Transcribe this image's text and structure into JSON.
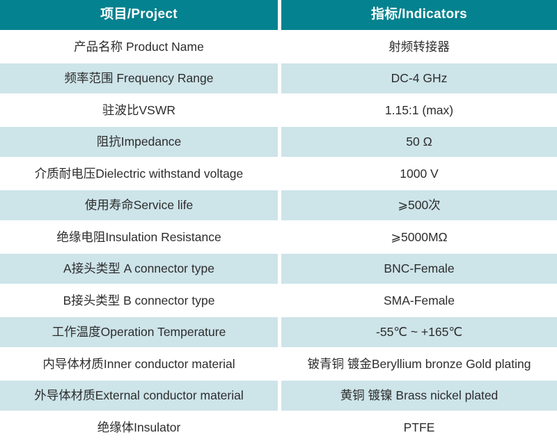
{
  "table": {
    "colors": {
      "header_background": "#05828F",
      "header_text": "#FFFFFF",
      "stripe_background": "#CDE4E9",
      "body_text": "#2D2D2D"
    },
    "header": {
      "project": "项目/Project",
      "indicators": "指标/Indicators"
    },
    "rows": [
      {
        "project": "产品名称 Product Name",
        "indicator": "射频转接器"
      },
      {
        "project": "频率范围 Frequency Range",
        "indicator": "DC-4 GHz"
      },
      {
        "project": "驻波比VSWR",
        "indicator": "1.15:1 (max)"
      },
      {
        "project": "阻抗Impedance",
        "indicator": "50 Ω"
      },
      {
        "project": "介质耐电压Dielectric withstand voltage",
        "indicator": "1000 V"
      },
      {
        "project": "使用寿命Service life",
        "indicator": "⩾500次"
      },
      {
        "project": "绝缘电阻Insulation Resistance",
        "indicator": "⩾5000MΩ"
      },
      {
        "project": "A接头类型 A connector type",
        "indicator": "BNC-Female"
      },
      {
        "project": "B接头类型 B connector type",
        "indicator": "SMA-Female"
      },
      {
        "project": "工作温度Operation Temperature",
        "indicator": "-55℃ ~ +165℃"
      },
      {
        "project": "内导体材质Inner conductor material",
        "indicator": "铍青铜 镀金Beryllium bronze Gold plating"
      },
      {
        "project": "外导体材质External conductor material",
        "indicator": "黄铜 镀镍 Brass nickel plated"
      },
      {
        "project": "绝缘体Insulator",
        "indicator": "PTFE"
      }
    ]
  }
}
